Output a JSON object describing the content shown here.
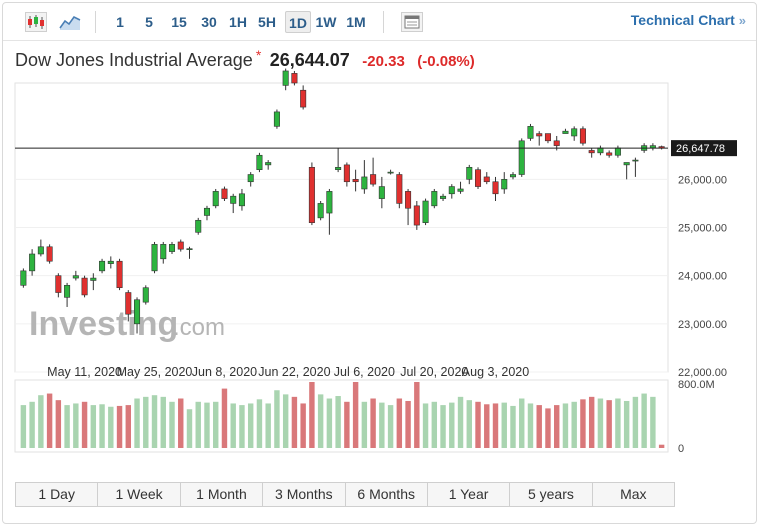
{
  "toolbar": {
    "periods": [
      "1",
      "5",
      "15",
      "30",
      "1H",
      "5H",
      "1D",
      "1W",
      "1M"
    ],
    "active_period": "1D",
    "technical_chart_label": "Technical Chart",
    "technical_chart_chevron": "»",
    "icons": [
      "candlestick-chart-icon",
      "area-chart-icon",
      "calendar-icon"
    ]
  },
  "quote": {
    "name": "Dow Jones Industrial Average",
    "star": "*",
    "price": "26,644.07",
    "change": "-20.33",
    "change_pct": "(-0.08%)",
    "negative_color": "#dd2a2a"
  },
  "watermark": {
    "brand": "Investing",
    "suffix": ".com"
  },
  "ranges": [
    "1 Day",
    "1 Week",
    "1 Month",
    "3 Months",
    "6 Months",
    "1 Year",
    "5 years",
    "Max"
  ],
  "colors": {
    "up": "#2db33f",
    "down": "#e0302f",
    "vol_up": "#a9d4b0",
    "vol_down": "#d9787a"
  },
  "chart_data": {
    "type": "candlestick",
    "price_ylim": [
      22000,
      28000
    ],
    "y_ticks": [
      "22,000.00",
      "23,000.00",
      "24,000.00",
      "25,000.00",
      "26,000.00"
    ],
    "current_price_label": "26,647.78",
    "current_price": 26647.78,
    "x_labels": [
      "May 11, 2020",
      "May 25, 2020",
      "Jun 8, 2020",
      "Jun 22, 2020",
      "Jul 6, 2020",
      "Jul 20, 2020",
      "Aug 3, 2020"
    ],
    "x_label_bar_index": [
      7,
      15,
      23,
      31,
      39,
      47,
      54
    ],
    "volume_ylim": [
      0,
      800
    ],
    "volume_ticks": [
      "800.0M",
      "0"
    ],
    "candles": [
      {
        "o": 23800,
        "h": 24150,
        "l": 23750,
        "c": 24100,
        "v": 520
      },
      {
        "o": 24100,
        "h": 24550,
        "l": 24000,
        "c": 24450,
        "v": 560
      },
      {
        "o": 24450,
        "h": 24750,
        "l": 24400,
        "c": 24600,
        "v": 640
      },
      {
        "o": 24600,
        "h": 24650,
        "l": 24250,
        "c": 24300,
        "v": 660
      },
      {
        "o": 24000,
        "h": 24050,
        "l": 23550,
        "c": 23650,
        "v": 580
      },
      {
        "o": 23550,
        "h": 23850,
        "l": 23350,
        "c": 23800,
        "v": 520
      },
      {
        "o": 23950,
        "h": 24100,
        "l": 23900,
        "c": 24000,
        "v": 540
      },
      {
        "o": 23950,
        "h": 24000,
        "l": 23550,
        "c": 23600,
        "v": 560
      },
      {
        "o": 23900,
        "h": 24050,
        "l": 23700,
        "c": 23950,
        "v": 520
      },
      {
        "o": 24100,
        "h": 24350,
        "l": 24050,
        "c": 24300,
        "v": 530
      },
      {
        "o": 24250,
        "h": 24400,
        "l": 24150,
        "c": 24300,
        "v": 500
      },
      {
        "o": 24300,
        "h": 24350,
        "l": 23700,
        "c": 23750,
        "v": 510
      },
      {
        "o": 23650,
        "h": 23700,
        "l": 23050,
        "c": 23200,
        "v": 520
      },
      {
        "o": 23000,
        "h": 23550,
        "l": 22800,
        "c": 23500,
        "v": 600
      },
      {
        "o": 23450,
        "h": 23800,
        "l": 23400,
        "c": 23750,
        "v": 620
      },
      {
        "o": 24100,
        "h": 24700,
        "l": 24050,
        "c": 24650,
        "v": 640
      },
      {
        "o": 24350,
        "h": 24700,
        "l": 24250,
        "c": 24650,
        "v": 620
      },
      {
        "o": 24500,
        "h": 24700,
        "l": 24450,
        "c": 24650,
        "v": 560
      },
      {
        "o": 24700,
        "h": 24750,
        "l": 24500,
        "c": 24550,
        "v": 600
      },
      {
        "o": 24550,
        "h": 24600,
        "l": 24350,
        "c": 24560,
        "v": 470
      },
      {
        "o": 24900,
        "h": 25200,
        "l": 24850,
        "c": 25150,
        "v": 560
      },
      {
        "o": 25250,
        "h": 25450,
        "l": 25150,
        "c": 25400,
        "v": 550
      },
      {
        "o": 25450,
        "h": 25800,
        "l": 25400,
        "c": 25750,
        "v": 560
      },
      {
        "o": 25800,
        "h": 25850,
        "l": 25550,
        "c": 25600,
        "v": 720
      },
      {
        "o": 25500,
        "h": 25700,
        "l": 25300,
        "c": 25650,
        "v": 540
      },
      {
        "o": 25450,
        "h": 25800,
        "l": 25350,
        "c": 25700,
        "v": 520
      },
      {
        "o": 25950,
        "h": 26150,
        "l": 25850,
        "c": 26100,
        "v": 540
      },
      {
        "o": 26200,
        "h": 26550,
        "l": 26150,
        "c": 26500,
        "v": 590
      },
      {
        "o": 26300,
        "h": 26400,
        "l": 26200,
        "c": 26350,
        "v": 540
      },
      {
        "o": 27100,
        "h": 27450,
        "l": 27050,
        "c": 27400,
        "v": 700
      },
      {
        "o": 27950,
        "h": 28300,
        "l": 27850,
        "c": 28250,
        "v": 650
      },
      {
        "o": 28200,
        "h": 28250,
        "l": 27950,
        "c": 28000,
        "v": 620
      },
      {
        "o": 27850,
        "h": 27950,
        "l": 27450,
        "c": 27500,
        "v": 540
      },
      {
        "o": 26250,
        "h": 26350,
        "l": 25050,
        "c": 25100,
        "v": 800
      },
      {
        "o": 25200,
        "h": 25550,
        "l": 25150,
        "c": 25500,
        "v": 650
      },
      {
        "o": 25300,
        "h": 25800,
        "l": 24850,
        "c": 25750,
        "v": 600
      },
      {
        "o": 26200,
        "h": 26650,
        "l": 26150,
        "c": 26250,
        "v": 630
      },
      {
        "o": 26300,
        "h": 26350,
        "l": 25850,
        "c": 25950,
        "v": 560
      },
      {
        "o": 26000,
        "h": 26200,
        "l": 25750,
        "c": 25950,
        "v": 800
      },
      {
        "o": 25800,
        "h": 26400,
        "l": 25700,
        "c": 26050,
        "v": 560
      },
      {
        "o": 26100,
        "h": 26450,
        "l": 25850,
        "c": 25900,
        "v": 600
      },
      {
        "o": 25600,
        "h": 26050,
        "l": 25400,
        "c": 25850,
        "v": 550
      },
      {
        "o": 26150,
        "h": 26200,
        "l": 26100,
        "c": 26150,
        "v": 520
      },
      {
        "o": 26100,
        "h": 26150,
        "l": 25400,
        "c": 25500,
        "v": 600
      },
      {
        "o": 25750,
        "h": 25800,
        "l": 25050,
        "c": 25400,
        "v": 570
      },
      {
        "o": 25450,
        "h": 25550,
        "l": 24950,
        "c": 25050,
        "v": 800
      },
      {
        "o": 25100,
        "h": 25600,
        "l": 25050,
        "c": 25550,
        "v": 540
      },
      {
        "o": 25450,
        "h": 25800,
        "l": 25400,
        "c": 25750,
        "v": 560
      },
      {
        "o": 25600,
        "h": 25700,
        "l": 25550,
        "c": 25650,
        "v": 520
      },
      {
        "o": 25700,
        "h": 25900,
        "l": 25600,
        "c": 25850,
        "v": 550
      },
      {
        "o": 25750,
        "h": 25950,
        "l": 25700,
        "c": 25800,
        "v": 620
      },
      {
        "o": 26000,
        "h": 26300,
        "l": 25900,
        "c": 26250,
        "v": 580
      },
      {
        "o": 26200,
        "h": 26250,
        "l": 25800,
        "c": 25850,
        "v": 560
      },
      {
        "o": 26050,
        "h": 26150,
        "l": 25900,
        "c": 25950,
        "v": 530
      },
      {
        "o": 25950,
        "h": 26050,
        "l": 25550,
        "c": 25700,
        "v": 540
      },
      {
        "o": 25800,
        "h": 26150,
        "l": 25700,
        "c": 26000,
        "v": 550
      },
      {
        "o": 26050,
        "h": 26150,
        "l": 26000,
        "c": 26100,
        "v": 510
      },
      {
        "o": 26100,
        "h": 26850,
        "l": 26050,
        "c": 26800,
        "v": 600
      },
      {
        "o": 26850,
        "h": 27150,
        "l": 26800,
        "c": 27100,
        "v": 540
      },
      {
        "o": 26950,
        "h": 27000,
        "l": 26700,
        "c": 26900,
        "v": 520
      },
      {
        "o": 26950,
        "h": 26950,
        "l": 26750,
        "c": 26800,
        "v": 480
      },
      {
        "o": 26800,
        "h": 26900,
        "l": 26600,
        "c": 26700,
        "v": 520
      },
      {
        "o": 26950,
        "h": 27050,
        "l": 26950,
        "c": 27000,
        "v": 540
      },
      {
        "o": 26900,
        "h": 27100,
        "l": 26800,
        "c": 27050,
        "v": 560
      },
      {
        "o": 27050,
        "h": 27100,
        "l": 26700,
        "c": 26750,
        "v": 590
      },
      {
        "o": 26600,
        "h": 26650,
        "l": 26450,
        "c": 26550,
        "v": 620
      },
      {
        "o": 26550,
        "h": 26700,
        "l": 26500,
        "c": 26650,
        "v": 600
      },
      {
        "o": 26550,
        "h": 26600,
        "l": 26450,
        "c": 26500,
        "v": 580
      },
      {
        "o": 26500,
        "h": 26700,
        "l": 26450,
        "c": 26650,
        "v": 600
      },
      {
        "o": 26300,
        "h": 26350,
        "l": 26000,
        "c": 26350,
        "v": 570
      },
      {
        "o": 26400,
        "h": 26450,
        "l": 26050,
        "c": 26400,
        "v": 620
      },
      {
        "o": 26600,
        "h": 26750,
        "l": 26550,
        "c": 26700,
        "v": 660
      },
      {
        "o": 26650,
        "h": 26750,
        "l": 26600,
        "c": 26700,
        "v": 620
      },
      {
        "o": 26680,
        "h": 26700,
        "l": 26620,
        "c": 26650,
        "v": 40
      }
    ]
  }
}
